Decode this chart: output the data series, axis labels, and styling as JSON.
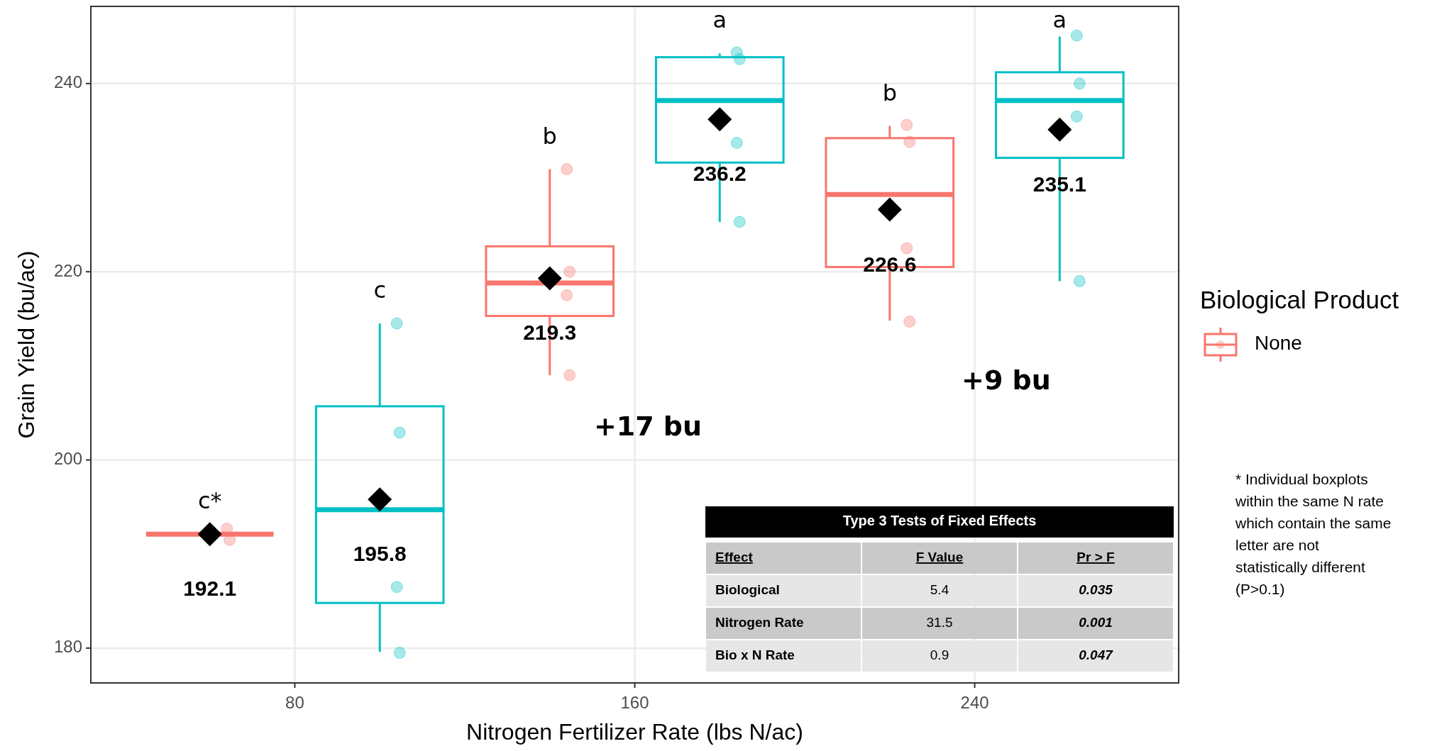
{
  "chart_data": {
    "type": "box",
    "xlabel": "Nitrogen Fertilizer Rate (lbs N/ac)",
    "ylabel": "Grain Yield (bu/ac)",
    "legend_title": "Biological Product",
    "categories": [
      "80",
      "160",
      "240"
    ],
    "ylim": [
      176.3,
      248.2
    ],
    "yticks": [
      180,
      200,
      220,
      240
    ],
    "grid": true,
    "legend": "right",
    "series": [
      {
        "name": "None",
        "color": "#f8766d",
        "boxes": [
          {
            "low": 192.1,
            "q1": 192.1,
            "median": 192.1,
            "q3": 192.1,
            "high": 192.1,
            "mean": 192.1
          },
          {
            "low": 209.0,
            "q1": 215.3,
            "median": 218.8,
            "q3": 222.7,
            "high": 230.9,
            "mean": 219.3
          },
          {
            "low": 214.8,
            "q1": 220.5,
            "median": 228.2,
            "q3": 234.2,
            "high": 235.5,
            "mean": 226.6
          }
        ],
        "value_labels": [
          "192.1",
          "219.3",
          "226.6"
        ]
      },
      {
        "color": "#00bfc4",
        "boxes": [
          {
            "low": 179.6,
            "q1": 184.8,
            "median": 194.7,
            "q3": 205.7,
            "high": 214.5,
            "mean": 195.8
          },
          {
            "low": 225.3,
            "q1": 231.6,
            "median": 238.2,
            "q3": 242.8,
            "high": 243.2,
            "mean": 236.2
          },
          {
            "low": 219.0,
            "q1": 232.1,
            "median": 238.2,
            "q3": 241.2,
            "high": 245.0,
            "mean": 235.1
          }
        ],
        "value_labels": [
          "195.8",
          "236.2",
          "235.1"
        ]
      },
      {
        "type": "scatter",
        "color": "#f8766d",
        "x": [
          "80",
          "80",
          "160",
          "160",
          "160",
          "160",
          "240",
          "240",
          "240",
          "240"
        ],
        "values": [
          192.7,
          191.5,
          230.9,
          220.0,
          217.5,
          209.0,
          235.6,
          233.8,
          222.5,
          214.7
        ]
      },
      {
        "type": "scatter",
        "color": "#00bfc4",
        "x": [
          "80",
          "80",
          "80",
          "80",
          "160",
          "160",
          "160",
          "160",
          "240",
          "240",
          "240",
          "240"
        ],
        "values": [
          214.5,
          202.9,
          186.5,
          179.5,
          243.3,
          242.6,
          233.7,
          225.3,
          245.1,
          240.0,
          236.5,
          219.0
        ]
      }
    ],
    "annotations": [
      "c*",
      "c",
      "b",
      "a",
      "b",
      "a",
      "+17 bu",
      "+9 bu",
      "* Individual boxplots within the same N rate which contain the same letter are not statistically different (P>0.1)",
      "Type 3 Tests of Fixed Effects",
      "Effect",
      "F Value",
      "Pr > F",
      "Biological",
      "5.4",
      "0.035",
      "Nitrogen Rate",
      "31.5",
      "0.001",
      "Bio x N Rate",
      "0.9",
      "0.047"
    ]
  }
}
